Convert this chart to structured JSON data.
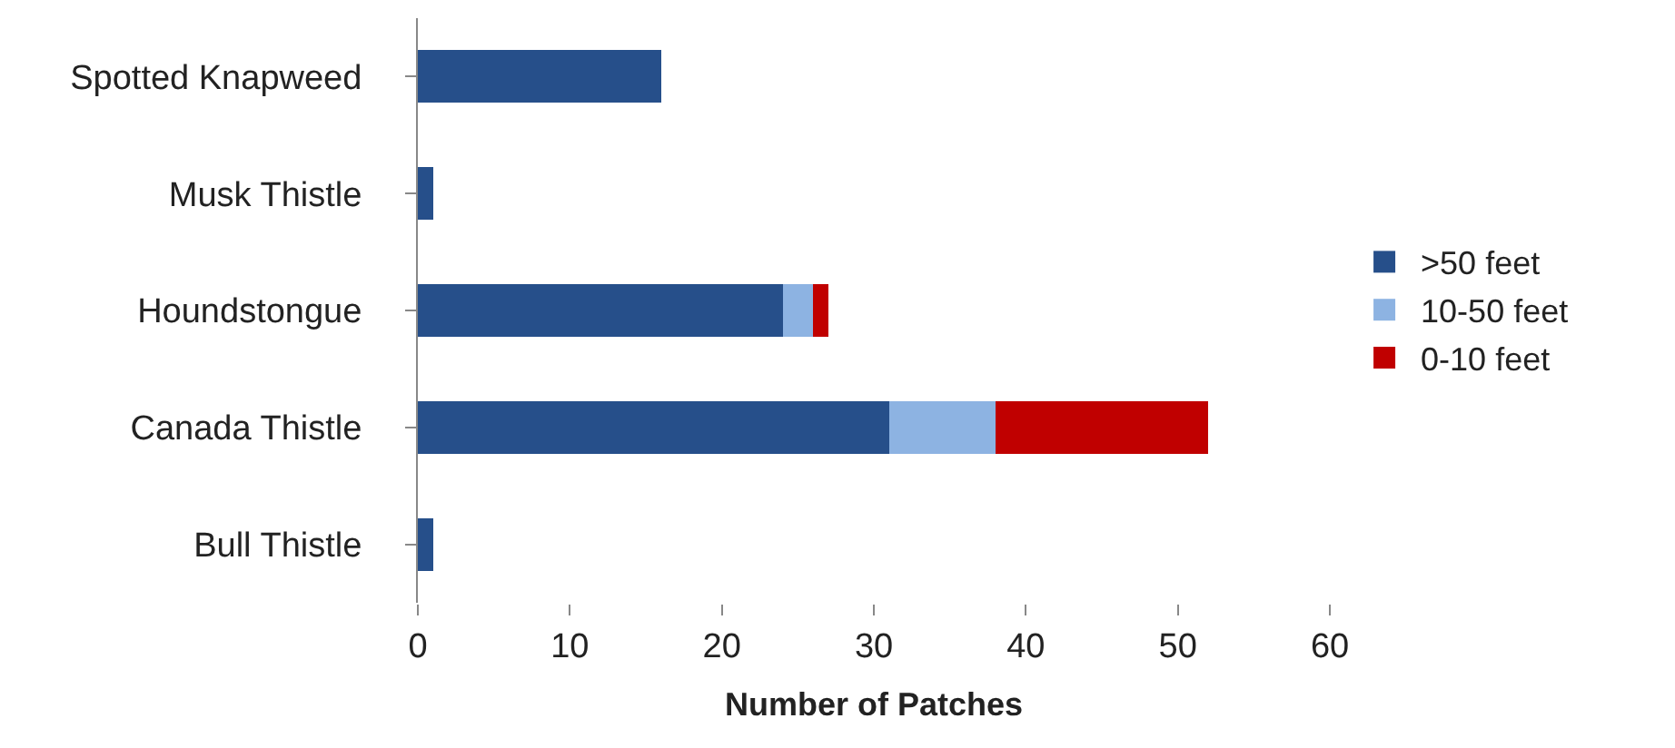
{
  "chart_data": {
    "type": "bar",
    "orientation": "horizontal",
    "stacked": true,
    "xlabel": "Number of Patches",
    "categories": [
      "Spotted Knapweed",
      "Musk Thistle",
      "Houndstongue",
      "Canada Thistle",
      "Bull Thistle"
    ],
    "series": [
      {
        "name": ">50 feet",
        "color": "#264f8a",
        "values": [
          16,
          1,
          24,
          31,
          1
        ]
      },
      {
        "name": "10-50 feet",
        "color": "#8db3e2",
        "values": [
          0,
          0,
          2,
          7,
          0
        ]
      },
      {
        "name": "0-10 feet",
        "color": "#c00000",
        "values": [
          0,
          0,
          1,
          14,
          0
        ]
      }
    ],
    "xlim": [
      0,
      60
    ],
    "xticks": [
      0,
      10,
      20,
      30,
      40,
      50,
      60
    ],
    "legend": "right"
  }
}
